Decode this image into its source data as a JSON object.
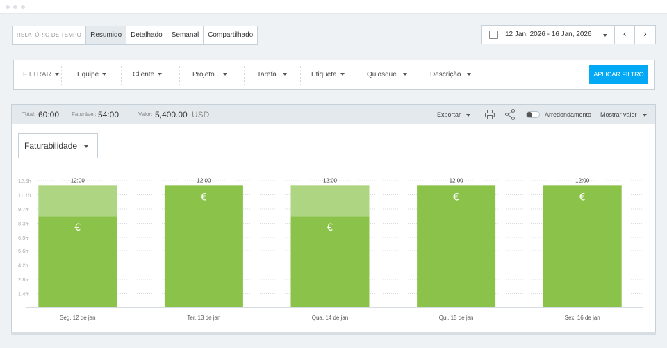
{
  "report_tabs": {
    "label": "RELATÓRIO DE TEMPO",
    "items": [
      "Resumido",
      "Detalhado",
      "Semanal",
      "Compartilhado"
    ],
    "active": "Resumido"
  },
  "date_range": {
    "value": "12 Jan, 2026 - 16 Jan, 2026",
    "prev_icon": "‹",
    "next_icon": "›"
  },
  "filters": {
    "label": "FILTRAR",
    "items": [
      "Equipe",
      "Cliente",
      "Projeto",
      "Tarefa",
      "Etiqueta",
      "Quiosque",
      "Descrição"
    ],
    "apply_label": "APLICAR FILTRO",
    "apply_color": "#03a9f4"
  },
  "summary": {
    "total_label": "Total:",
    "total_value": "60:00",
    "billable_label": "Faturável:",
    "billable_value": "54:00",
    "amount_label": "Valor:",
    "amount_value": "5,400.00",
    "amount_unit": "USD"
  },
  "toolbar": {
    "export_label": "Exportar",
    "rounding_label": "Arredondamento",
    "show_value_label": "Mostrar valor"
  },
  "grouping": {
    "selected": "Faturabilidade"
  },
  "chart_data": {
    "type": "bar",
    "categories": [
      "Seg, 12 de jan",
      "Ter, 13 de jan",
      "Qua, 14 de jan",
      "Qui, 15 de jan",
      "Sex, 16 de jan"
    ],
    "series": [
      {
        "values": [
          9,
          12,
          9,
          12,
          12
        ],
        "color": "#8bc34a"
      },
      {
        "values": [
          3,
          0,
          3,
          0,
          0
        ],
        "color": "#aed581"
      }
    ],
    "totals": [
      "12:00",
      "12:00",
      "12:00",
      "12:00",
      "12:00"
    ],
    "bar_marker": "€",
    "y_ticks": [
      "1.4h",
      "2.8h",
      "4.2h",
      "5.6h",
      "6.9h",
      "8.3h",
      "9.7h",
      "11.1h",
      "12.5h"
    ],
    "ylim": [
      0,
      12.5
    ],
    "stacked": true,
    "grid": true
  }
}
